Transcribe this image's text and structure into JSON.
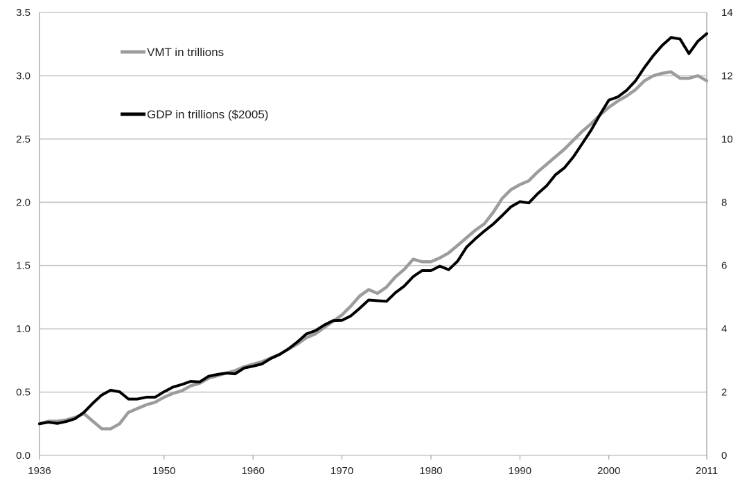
{
  "chart_data": {
    "type": "line",
    "title": "",
    "xlabel": "",
    "ylabel": "",
    "y2label": "",
    "x_tick_labels": [
      "1936",
      "1950",
      "1960",
      "1970",
      "1980",
      "1990",
      "2000",
      "2011"
    ],
    "x_ticks_at": [
      1936,
      1950,
      1960,
      1970,
      1980,
      1990,
      2000,
      2011
    ],
    "xlim": [
      1936,
      2011
    ],
    "ylim": [
      0,
      3.5
    ],
    "y_ticks": [
      0.0,
      0.5,
      1.0,
      1.5,
      2.0,
      2.5,
      3.0,
      3.5
    ],
    "y_tick_labels": [
      "0.0",
      "0.5",
      "1.0",
      "1.5",
      "2.0",
      "2.5",
      "3.0",
      "3.5"
    ],
    "y2lim": [
      0,
      14
    ],
    "y2_ticks": [
      0,
      2,
      4,
      6,
      8,
      10,
      12,
      14
    ],
    "y2_tick_labels": [
      "0",
      "2",
      "4",
      "6",
      "8",
      "10",
      "12",
      "14"
    ],
    "grid": true,
    "legend_position": "top-left",
    "series": [
      {
        "name": "VMT in trillions",
        "axis": "left",
        "color": "#9c9c9c",
        "x": [
          1936,
          1937,
          1938,
          1939,
          1940,
          1941,
          1942,
          1943,
          1944,
          1945,
          1946,
          1947,
          1948,
          1949,
          1950,
          1951,
          1952,
          1953,
          1954,
          1955,
          1956,
          1957,
          1958,
          1959,
          1960,
          1961,
          1962,
          1963,
          1964,
          1965,
          1966,
          1967,
          1968,
          1969,
          1970,
          1971,
          1972,
          1973,
          1974,
          1975,
          1976,
          1977,
          1978,
          1979,
          1980,
          1981,
          1982,
          1983,
          1984,
          1985,
          1986,
          1987,
          1988,
          1989,
          1990,
          1991,
          1992,
          1993,
          1994,
          1995,
          1996,
          1997,
          1998,
          1999,
          2000,
          2001,
          2002,
          2003,
          2004,
          2005,
          2006,
          2007,
          2008,
          2009,
          2010,
          2011
        ],
        "values": [
          0.25,
          0.27,
          0.27,
          0.28,
          0.3,
          0.33,
          0.27,
          0.21,
          0.21,
          0.25,
          0.34,
          0.37,
          0.4,
          0.42,
          0.46,
          0.49,
          0.51,
          0.55,
          0.57,
          0.61,
          0.63,
          0.65,
          0.67,
          0.7,
          0.72,
          0.74,
          0.77,
          0.8,
          0.84,
          0.88,
          0.93,
          0.96,
          1.01,
          1.06,
          1.11,
          1.18,
          1.26,
          1.31,
          1.28,
          1.33,
          1.41,
          1.47,
          1.55,
          1.53,
          1.53,
          1.56,
          1.6,
          1.66,
          1.72,
          1.78,
          1.83,
          1.92,
          2.03,
          2.1,
          2.14,
          2.17,
          2.24,
          2.3,
          2.36,
          2.42,
          2.49,
          2.56,
          2.62,
          2.69,
          2.75,
          2.8,
          2.84,
          2.89,
          2.96,
          3.0,
          3.02,
          3.03,
          2.98,
          2.98,
          3.0,
          2.96
        ]
      },
      {
        "name": "GDP in trillions ($2005)",
        "axis": "right",
        "color": "#000000",
        "x": [
          1936,
          1937,
          1938,
          1939,
          1940,
          1941,
          1942,
          1943,
          1944,
          1945,
          1946,
          1947,
          1948,
          1949,
          1950,
          1951,
          1952,
          1953,
          1954,
          1955,
          1956,
          1957,
          1958,
          1959,
          1960,
          1961,
          1962,
          1963,
          1964,
          1965,
          1966,
          1967,
          1968,
          1969,
          1970,
          1971,
          1972,
          1973,
          1974,
          1975,
          1976,
          1977,
          1978,
          1979,
          1980,
          1981,
          1982,
          1983,
          1984,
          1985,
          1986,
          1987,
          1988,
          1989,
          1990,
          1991,
          1992,
          1993,
          1994,
          1995,
          1996,
          1997,
          1998,
          1999,
          2000,
          2001,
          2002,
          2003,
          2004,
          2005,
          2006,
          2007,
          2008,
          2009,
          2010,
          2011
        ],
        "values": [
          1.0,
          1.05,
          1.01,
          1.07,
          1.16,
          1.36,
          1.65,
          1.91,
          2.06,
          2.01,
          1.78,
          1.78,
          1.84,
          1.84,
          2.01,
          2.16,
          2.24,
          2.34,
          2.32,
          2.5,
          2.56,
          2.6,
          2.58,
          2.76,
          2.82,
          2.89,
          3.06,
          3.19,
          3.37,
          3.59,
          3.84,
          3.94,
          4.12,
          4.26,
          4.27,
          4.41,
          4.65,
          4.91,
          4.89,
          4.87,
          5.14,
          5.35,
          5.65,
          5.84,
          5.84,
          5.98,
          5.87,
          6.14,
          6.58,
          6.85,
          7.09,
          7.31,
          7.58,
          7.86,
          8.02,
          7.98,
          8.27,
          8.52,
          8.87,
          9.09,
          9.43,
          9.85,
          10.28,
          10.77,
          11.23,
          11.33,
          11.54,
          11.84,
          12.26,
          12.64,
          12.96,
          13.21,
          13.16,
          12.7,
          13.09,
          13.33
        ]
      }
    ]
  }
}
